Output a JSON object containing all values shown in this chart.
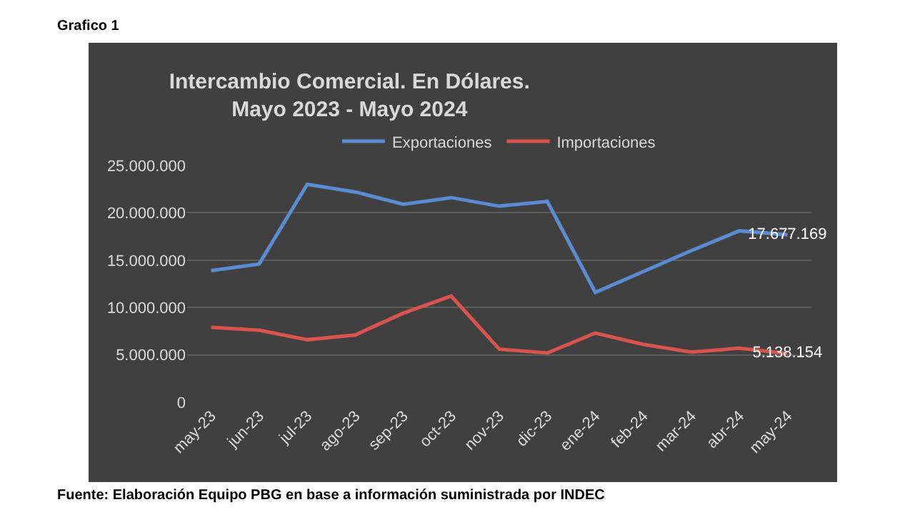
{
  "chart_data": {
    "type": "line",
    "title": "Intercambio Comercial. En Dólares.\nMayo 2023 - Mayo 2024",
    "categories": [
      "may-23",
      "jun-23",
      "jul-23",
      "ago-23",
      "sep-23",
      "oct-23",
      "nov-23",
      "dic-23",
      "ene-24",
      "feb-24",
      "mar-24",
      "abr-24",
      "may-24"
    ],
    "series": [
      {
        "name": "Exportaciones",
        "color": "#5b8bd0",
        "values": [
          13900000,
          14600000,
          23000000,
          22200000,
          20900000,
          21600000,
          20700000,
          21200000,
          11600000,
          13800000,
          16000000,
          18100000,
          17677169
        ],
        "value_labels": [
          null,
          null,
          null,
          null,
          null,
          null,
          null,
          null,
          null,
          null,
          null,
          null,
          "17.677.169"
        ]
      },
      {
        "name": "Importaciones",
        "color": "#d9534f",
        "values": [
          7900000,
          7600000,
          6600000,
          7100000,
          9400000,
          11200000,
          5600000,
          5200000,
          7300000,
          6100000,
          5300000,
          5700000,
          5138154
        ],
        "value_labels": [
          null,
          null,
          null,
          null,
          null,
          null,
          null,
          null,
          null,
          null,
          null,
          null,
          "5.138.154"
        ]
      }
    ],
    "ylim": [
      0,
      25000000
    ],
    "yticks": [
      {
        "value": 0,
        "label": "0"
      },
      {
        "value": 5000000,
        "label": "5.000.000"
      },
      {
        "value": 10000000,
        "label": "10.000.000"
      },
      {
        "value": 15000000,
        "label": "15.000.000"
      },
      {
        "value": 20000000,
        "label": "20.000.000"
      },
      {
        "value": 25000000,
        "label": "25.000.000"
      }
    ],
    "grid": "y",
    "legend": "top",
    "marker": "none",
    "line_style": "solid",
    "annotations": [
      "Grafico 1",
      "Fuente: Elaboración Equipo PBG en base a información suministrada por INDEC"
    ]
  }
}
